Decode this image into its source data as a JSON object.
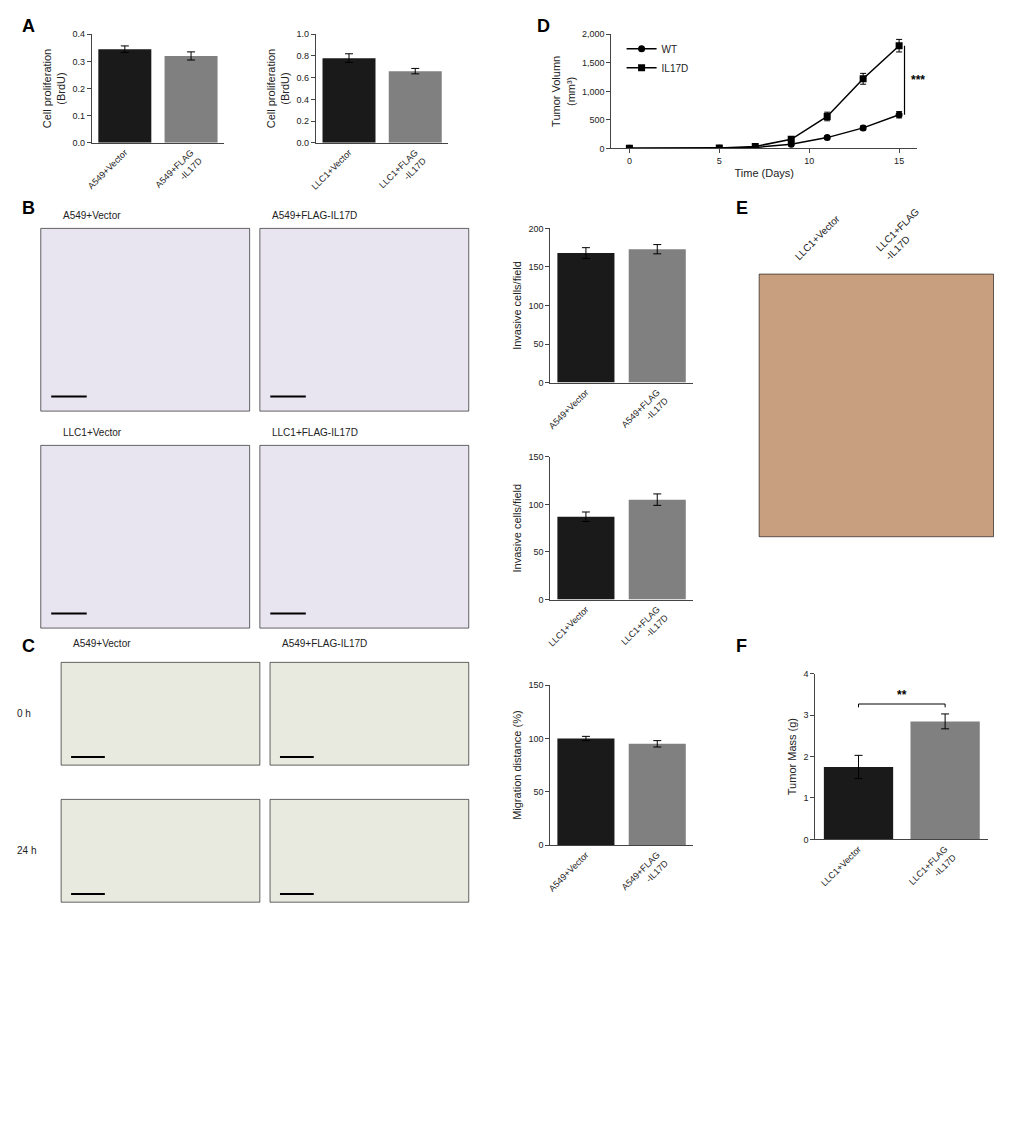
{
  "chart_data": [
    {
      "type": "bar",
      "title": "A",
      "categories": [
        "A549+Vector",
        "A549+FLAG\n-IL17D"
      ],
      "values": [
        0.345,
        0.32
      ],
      "errors": [
        0.012,
        0.015
      ],
      "colors": [
        "#1a1a1a",
        "#808080"
      ],
      "ylabel": "Cell proliferation\n(BrdU)",
      "ylim": [
        0,
        0.4
      ],
      "yticks": [
        {
          "value": 0,
          "label": "0.0"
        },
        0.1,
        0.2,
        0.3,
        0.4
      ],
      "grid": false
    },
    {
      "type": "bar",
      "categories": [
        "LLC1+Vector",
        "LLC1+FLAG\n-IL17D"
      ],
      "values": [
        0.78,
        0.66
      ],
      "errors": [
        0.04,
        0.025
      ],
      "colors": [
        "#1a1a1a",
        "#808080"
      ],
      "ylabel": "Cell proliferation\n(BrdU)",
      "ylim": [
        0,
        1.0
      ],
      "yticks": [
        {
          "value": 0,
          "label": "0.0"
        },
        0.2,
        0.4,
        0.6,
        0.8,
        {
          "value": 1.0,
          "label": "1.0"
        }
      ],
      "grid": false
    },
    {
      "type": "line",
      "title": "D",
      "x": [
        0,
        5,
        7,
        9,
        11,
        13,
        15
      ],
      "series": [
        {
          "name": "WT",
          "color": "black",
          "marker": "circle",
          "values": [
            2,
            5,
            18,
            75,
            190,
            360,
            590
          ],
          "errors": [
            1,
            3,
            8,
            15,
            25,
            35,
            55
          ]
        },
        {
          "name": "IL17D",
          "color": "black",
          "marker": "square",
          "values": [
            2,
            8,
            35,
            160,
            560,
            1220,
            1800
          ],
          "errors": [
            1,
            4,
            18,
            35,
            75,
            95,
            110
          ]
        }
      ],
      "xlabel": "Time (Days)",
      "ylabel": "Tumor Volumn\n(mm³)",
      "xlim": [
        -1,
        16
      ],
      "xticks": [
        0,
        5,
        10,
        15
      ],
      "ylim": [
        0,
        2000
      ],
      "yticks": [
        0,
        500,
        {
          "value": 1000,
          "label": "1,000"
        },
        {
          "value": 1500,
          "label": "1,500"
        },
        {
          "value": 2000,
          "label": "2,000"
        }
      ],
      "legend": "upper left",
      "annotations": [
        "***"
      ],
      "grid": false
    },
    {
      "type": "image",
      "title": "B",
      "color": "#e8e4f0",
      "annotations": [
        "A549+Vector",
        "A549+FLAG-IL17D",
        "LLC1+Vector",
        "LLC1+FLAG-IL17D"
      ]
    },
    {
      "type": "bar",
      "categories": [
        "A549+Vector",
        "A549+FLAG\n-IL17D"
      ],
      "values": [
        168,
        173
      ],
      "errors": [
        7,
        6
      ],
      "colors": [
        "#1a1a1a",
        "#808080"
      ],
      "ylabel": "Invasive cells/field",
      "ylim": [
        0,
        200
      ],
      "yticks": [
        0,
        50,
        100,
        150,
        200
      ],
      "grid": false
    },
    {
      "type": "bar",
      "categories": [
        "LLC1+Vector",
        "LLC1+FLAG\n-IL17D"
      ],
      "values": [
        87,
        105
      ],
      "errors": [
        5,
        6
      ],
      "colors": [
        "#1a1a1a",
        "#808080"
      ],
      "ylabel": "Invasive cells/field",
      "ylim": [
        0,
        150
      ],
      "yticks": [
        0,
        50,
        100,
        150
      ],
      "grid": false
    },
    {
      "type": "image",
      "title": "E",
      "color": "#c8a080",
      "annotations": [
        "LLC1+Vector",
        "LLC1+FLAG\n-IL17D"
      ]
    },
    {
      "type": "image",
      "title": "C",
      "color": "#e8eae0",
      "annotations": [
        "A549+Vector",
        "A549+FLAG-IL17D",
        "0 h",
        "24 h"
      ]
    },
    {
      "type": "bar",
      "categories": [
        "A549+Vector",
        "A549+FLAG\n-IL17D"
      ],
      "values": [
        100,
        95
      ],
      "errors": [
        2,
        3
      ],
      "colors": [
        "#1a1a1a",
        "#808080"
      ],
      "ylabel": "Migration distance (%)",
      "ylim": [
        0,
        150
      ],
      "yticks": [
        0,
        50,
        100,
        150
      ],
      "grid": false
    },
    {
      "type": "bar",
      "title": "F",
      "categories": [
        "LLC1+Vector",
        "LLC1+FLAG\n-IL17D"
      ],
      "values": [
        1.75,
        2.85
      ],
      "errors": [
        0.28,
        0.18
      ],
      "colors": [
        "#1a1a1a",
        "#808080"
      ],
      "ylabel": "Tumor Mass (g)",
      "ylim": [
        0,
        4
      ],
      "yticks": [
        0,
        1,
        2,
        3,
        4
      ],
      "annotations": [
        "**"
      ],
      "grid": false
    }
  ]
}
